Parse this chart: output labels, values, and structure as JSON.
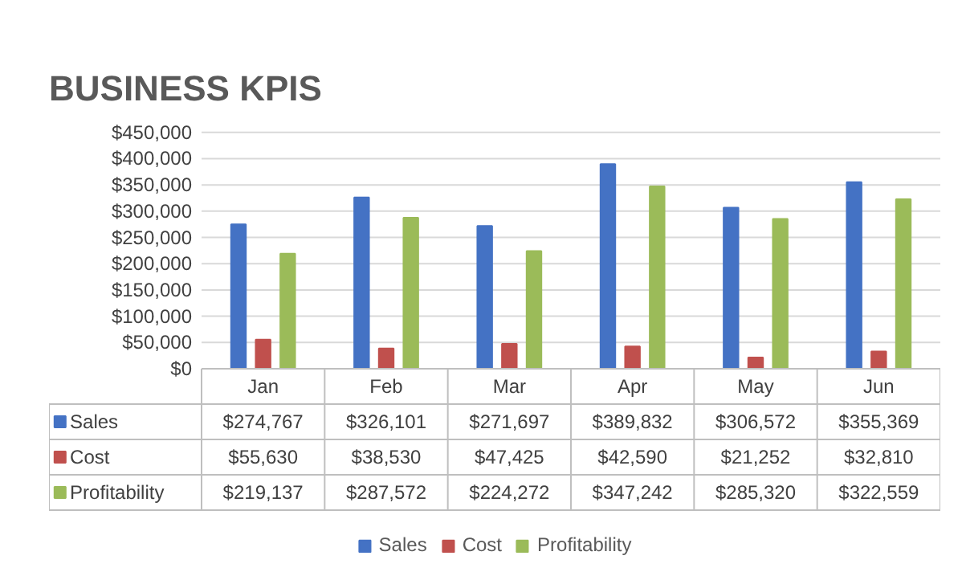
{
  "chart_data": {
    "type": "bar",
    "title": "BUSINESS KPIS",
    "categories": [
      "Jan",
      "Feb",
      "Mar",
      "Apr",
      "May",
      "Jun"
    ],
    "series": [
      {
        "name": "Sales",
        "color": "#4472c4",
        "values": [
          274767,
          326101,
          271697,
          389832,
          306572,
          355369
        ],
        "value_labels": [
          "$274,767",
          "$326,101",
          "$271,697",
          "$389,832",
          "$306,572",
          "$355,369"
        ]
      },
      {
        "name": "Cost",
        "color": "#c0504d",
        "values": [
          55630,
          38530,
          47425,
          42590,
          21252,
          32810
        ],
        "value_labels": [
          "$55,630",
          "$38,530",
          "$47,425",
          "$42,590",
          "$21,252",
          "$32,810"
        ]
      },
      {
        "name": "Profitability",
        "color": "#9bbb59",
        "values": [
          219137,
          287572,
          224272,
          347242,
          285320,
          322559
        ],
        "value_labels": [
          "$219,137",
          "$287,572",
          "$224,272",
          "$347,242",
          "$285,320",
          "$322,559"
        ]
      }
    ],
    "ylim": [
      0,
      450000
    ],
    "yticks": [
      {
        "value": 0,
        "label": "$0"
      },
      {
        "value": 50000,
        "label": "$50,000"
      },
      {
        "value": 100000,
        "label": "$100,000"
      },
      {
        "value": 150000,
        "label": "$150,000"
      },
      {
        "value": 200000,
        "label": "$200,000"
      },
      {
        "value": 250000,
        "label": "$250,000"
      },
      {
        "value": 300000,
        "label": "$300,000"
      },
      {
        "value": 350000,
        "label": "$350,000"
      },
      {
        "value": 400000,
        "label": "$400,000"
      },
      {
        "value": 450000,
        "label": "$450,000"
      }
    ],
    "grid": "y",
    "legend": "bottom"
  }
}
